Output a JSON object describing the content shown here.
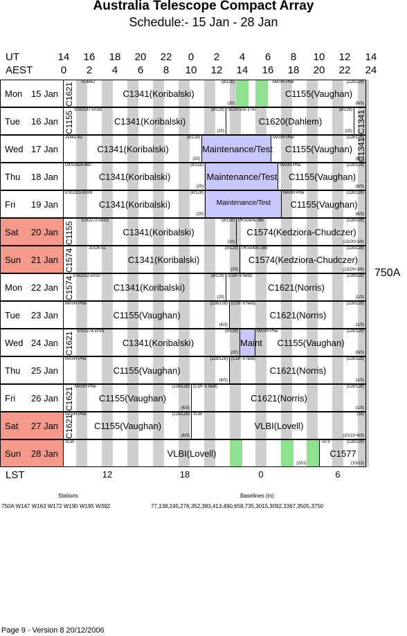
{
  "title": "Australia Telescope Compact Array",
  "subtitle": "Schedule:- 15 Jan - 28 Jan",
  "ut_label": "UT",
  "aest_label": "AEST",
  "ut_ticks": [
    "14",
    "16",
    "18",
    "20",
    "22",
    "0",
    "2",
    "4",
    "6",
    "8",
    "10",
    "12",
    "14"
  ],
  "aest_ticks": [
    "0",
    "2",
    "4",
    "6",
    "8",
    "10",
    "12",
    "14",
    "16",
    "18",
    "20",
    "22",
    "24"
  ],
  "lst_label": "LST",
  "lst_ticks": [
    "12",
    "18",
    "0",
    "6"
  ],
  "array_config": "750A",
  "colors": {
    "weekend": "#f59a8a",
    "stripe": "#cfcfcf",
    "maint": "#c8c8ff",
    "green": "#8fe08f"
  },
  "days": [
    {
      "dow": "Mon",
      "date": "15 Jan",
      "weekend": false,
      "blocks": [
        {
          "main": "C1341(Koribalski)",
          "small": "IC4662",
          "note": "(8/128)",
          "sub": "(20)"
        },
        {
          "main": "C1155(Vaughan)",
          "small": "MASH PNe",
          "note": "(128/128)",
          "sub": "(6/3)"
        }
      ],
      "vert": "C1621"
    },
    {
      "dow": "Tue",
      "date": "16 Jan",
      "weekend": false,
      "blocks": [
        {
          "main": "C1341(Koribalski)",
          "small": "ESO137-G018",
          "note": "(8/128)",
          "sub": "(20)"
        },
        {
          "main": "C1620(Dahlem)",
          "small": "SCG0105-1747",
          "note": "(8/128)",
          "sub": "(20)"
        }
      ],
      "vert": "C1155",
      "vert2": "C1341"
    },
    {
      "dow": "Wed",
      "date": "17 Jan",
      "weekend": false,
      "blocks": [
        {
          "main": "C1341(Koribalski)",
          "small": "J1441-62",
          "note": "(8/128)",
          "sub": "(20)"
        },
        {
          "main": "Maintenance/Test",
          "small": "",
          "note": "",
          "sub": ""
        },
        {
          "main": "C1155(Vaughan)",
          "small": "MASH PNe",
          "note": "(128/128)",
          "sub": "(6/3)"
        }
      ],
      "vert2": "C1341"
    },
    {
      "dow": "Thu",
      "date": "18 Jan",
      "weekend": false,
      "blocks": [
        {
          "main": "C1341(Koribalski)",
          "small": "UKS1424-460",
          "note": "(8/128)",
          "sub": "(20)"
        },
        {
          "main": "Maintenance/Test",
          "small": "",
          "note": "",
          "sub": ""
        },
        {
          "main": "C1155(Vaughan)",
          "small": "MASH PNe",
          "note": "(128/128)",
          "sub": "(6/3)"
        }
      ]
    },
    {
      "dow": "Fri",
      "date": "19 Jan",
      "weekend": false,
      "blocks": [
        {
          "main": "C1341(Koribalski)",
          "small": "ESO223-G009",
          "note": "(8/128)",
          "sub": "(20)"
        },
        {
          "main": "Maintenance/Test",
          "small": "",
          "note": "",
          "sub": ""
        },
        {
          "main": "C1155(Vaughan)",
          "small": "MASH PNe",
          "note": "(128/128)",
          "sub": "(6/3)"
        }
      ]
    },
    {
      "dow": "Sat",
      "date": "20 Jan",
      "weekend": true,
      "blocks": [
        {
          "main": "C1341(Koribalski)",
          "small": "ESO272-G025",
          "note": "(8/128)",
          "sub": "(20)"
        },
        {
          "main": "C1574(Kedziora-Chudczer)",
          "small": "PKS0405-385",
          "note": "(128/128)",
          "sub": "(13/20+3/6)"
        }
      ],
      "vert": "C1155"
    },
    {
      "dow": "Sun",
      "date": "21 Jan",
      "weekend": true,
      "blocks": [
        {
          "main": "C1341(Koribalski)",
          "small": "J1526-51",
          "note": "(8/128)",
          "sub": "(20)"
        },
        {
          "main": "C1574(Kedziora-Chudczer)",
          "small": "PKS0405-385",
          "note": "(128/128)",
          "sub": "(13/20+3/6)"
        }
      ],
      "vert": "C1574"
    },
    {
      "dow": "Mon",
      "date": "22 Jan",
      "weekend": false,
      "blocks": [
        {
          "main": "C1341(Koribalski)",
          "small": "ESO222-G010",
          "note": "(8/128)",
          "sub": "(20)"
        },
        {
          "main": "C1621(Norris)",
          "small": "(CDF-S field)",
          "note": "(128/128)",
          "sub": "(1/3)"
        }
      ],
      "vert": "C1574"
    },
    {
      "dow": "Tue",
      "date": "23 Jan",
      "weekend": false,
      "blocks": [
        {
          "main": "C1155(Vaughan)",
          "small": "MASH PNe",
          "note": "(128/128)",
          "sub": "(6/3)"
        },
        {
          "main": "C1621(Norris)",
          "small": "(CDF-S field)",
          "note": "(128/128)",
          "sub": "(1/3)"
        }
      ]
    },
    {
      "dow": "Wed",
      "date": "24 Jan",
      "weekend": false,
      "blocks": [
        {
          "main": "C1341(Koribalski)",
          "small": "ESO274-G001",
          "note": "(8/128)",
          "sub": "(20)"
        },
        {
          "main": "Maint",
          "small": "",
          "note": "",
          "sub": ""
        },
        {
          "main": "C1155(Vaughan)",
          "small": "MASH PNe",
          "note": "(128/128)",
          "sub": "(6/3)"
        }
      ],
      "vert": "C1621"
    },
    {
      "dow": "Thu",
      "date": "25 Jan",
      "weekend": false,
      "blocks": [
        {
          "main": "C1155(Vaughan)",
          "small": "MASH PNe",
          "note": "(128/128)",
          "sub": "(6/3)"
        },
        {
          "main": "C1621(Norris)",
          "small": "(CDF-S field)",
          "note": "(128/128)",
          "sub": "(1/3)"
        }
      ]
    },
    {
      "dow": "Fri",
      "date": "26 Jan",
      "weekend": false,
      "blocks": [
        {
          "main": "C1155(Vaughan)",
          "small": "MASH PNe",
          "note": "(128/128)",
          "sub": "(6/3)"
        },
        {
          "main": "C1621(Norris)",
          "small": "(CDF-S field)",
          "note": "(128/128)",
          "sub": "(1/3)"
        }
      ],
      "vert": "C1621"
    },
    {
      "dow": "Sat",
      "date": "27 Jan",
      "weekend": true,
      "blocks": [
        {
          "main": "C1155(Vaughan)",
          "small": "MASH PNe",
          "note": "(128/128)",
          "sub": "(6/3)"
        },
        {
          "main": "VLBI(Lovell)",
          "small": "VLBI",
          "note": "(16)",
          "sub": "(20/13+6/3)"
        }
      ],
      "vert": "C1621"
    },
    {
      "dow": "Sun",
      "date": "28 Jan",
      "weekend": true,
      "blocks": [
        {
          "main": "VLBI(Lovell)",
          "small": "VLBI",
          "note": "(16)",
          "sub": "(20/13+6/3)"
        },
        {
          "main": "C1577",
          "small": "Tol 9",
          "note": "(128/128)",
          "sub": "(20/13)"
        }
      ]
    }
  ],
  "footer": {
    "stations_label": "Stations",
    "baselines_label": "Baselines (m)",
    "stations": "750A   W147 W163 W172 W190 W195 W392",
    "baselines": "77,138,245,276,352,383,413,490,658,735,3015,3092,3367,3505,3750",
    "page": "Page 9 - Version 8  20/12/2006"
  }
}
